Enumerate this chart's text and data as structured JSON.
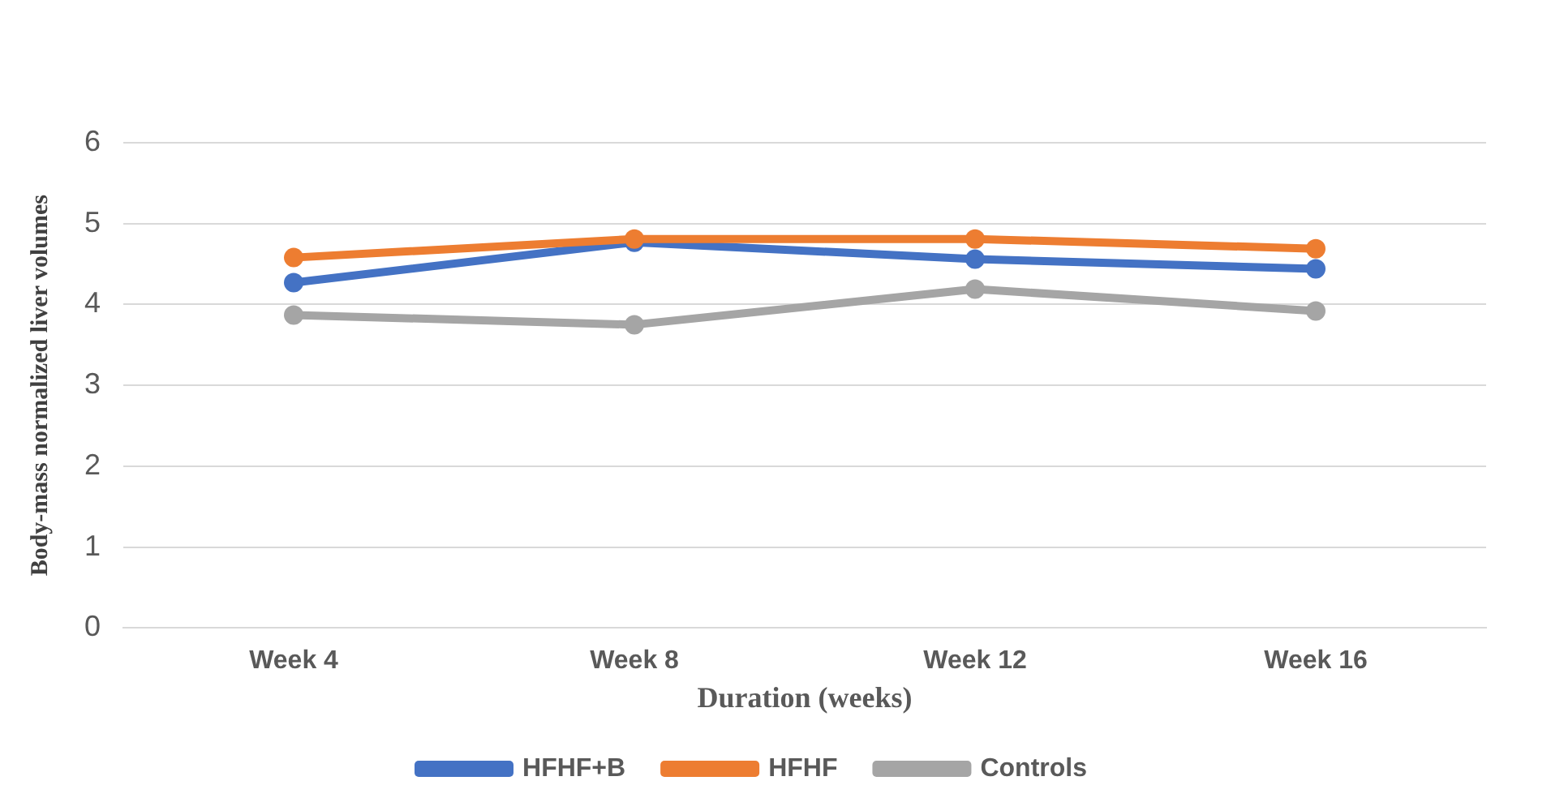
{
  "chart_data": {
    "type": "line",
    "xlabel": "Duration (weeks)",
    "ylabel": "Body-mass normalized liver volumes",
    "categories": [
      "Week 4",
      "Week 8",
      "Week 12",
      "Week 16"
    ],
    "series": [
      {
        "name": "HFHF+B",
        "color": "#4472c4",
        "values": [
          4.27,
          4.77,
          4.56,
          4.44
        ]
      },
      {
        "name": "HFHF",
        "color": "#ed7d31",
        "values": [
          4.58,
          4.81,
          4.81,
          4.69
        ]
      },
      {
        "name": "Controls",
        "color": "#a5a5a5",
        "values": [
          3.87,
          3.75,
          4.19,
          3.92
        ]
      }
    ],
    "ylim": [
      0,
      6
    ],
    "yticks": [
      0,
      1,
      2,
      3,
      4,
      5,
      6
    ],
    "grid": "y",
    "legend": "bottom",
    "marker": "circle",
    "line_style": "solid"
  }
}
